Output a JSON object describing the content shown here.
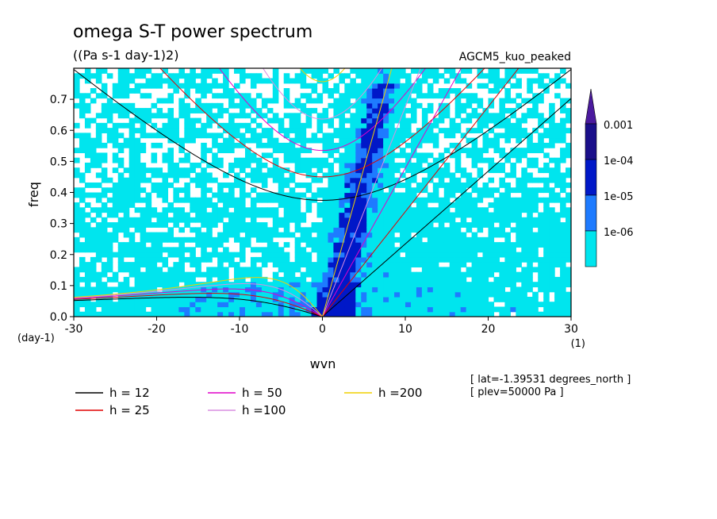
{
  "chart_data": {
    "type": "heatmap",
    "title": "omega S-T power spectrum",
    "subtitle": "((Pa s-1 day-1)2)",
    "dataset_label": "AGCM5_kuo_peaked",
    "xlabel": "wvn",
    "ylabel": "freq",
    "x_unit": "(1)",
    "y_unit": "(day-1)",
    "xlim": [
      -30,
      30
    ],
    "ylim": [
      0,
      0.8
    ],
    "xticks": [
      "-30",
      "-20",
      "-10",
      "0",
      "10",
      "20",
      "30"
    ],
    "yticks": [
      "0.0",
      "0.1",
      "0.2",
      "0.3",
      "0.4",
      "0.5",
      "0.6",
      "0.7"
    ],
    "colorbar": {
      "levels": [
        "1e-06",
        "1e-05",
        "1e-04",
        "0.001"
      ],
      "colors": [
        "#00e5ee",
        "#1e7bff",
        "#0018c8",
        "#1a0f8a",
        "#4b1a9e"
      ]
    },
    "series": [
      {
        "name": "h = 12",
        "equivalent_depth": 12,
        "color": "#000000"
      },
      {
        "name": "h = 25",
        "equivalent_depth": 25,
        "color": "#e00000"
      },
      {
        "name": "h = 50",
        "equivalent_depth": 50,
        "color": "#e000c8"
      },
      {
        "name": "h =100",
        "equivalent_depth": 100,
        "color": "#d88ee0"
      },
      {
        "name": "h =200",
        "equivalent_depth": 200,
        "color": "#f0d000"
      }
    ],
    "annotations": [
      "[ lat=-1.39531 degrees_north ]",
      "[ plev=50000 Pa ]"
    ]
  }
}
